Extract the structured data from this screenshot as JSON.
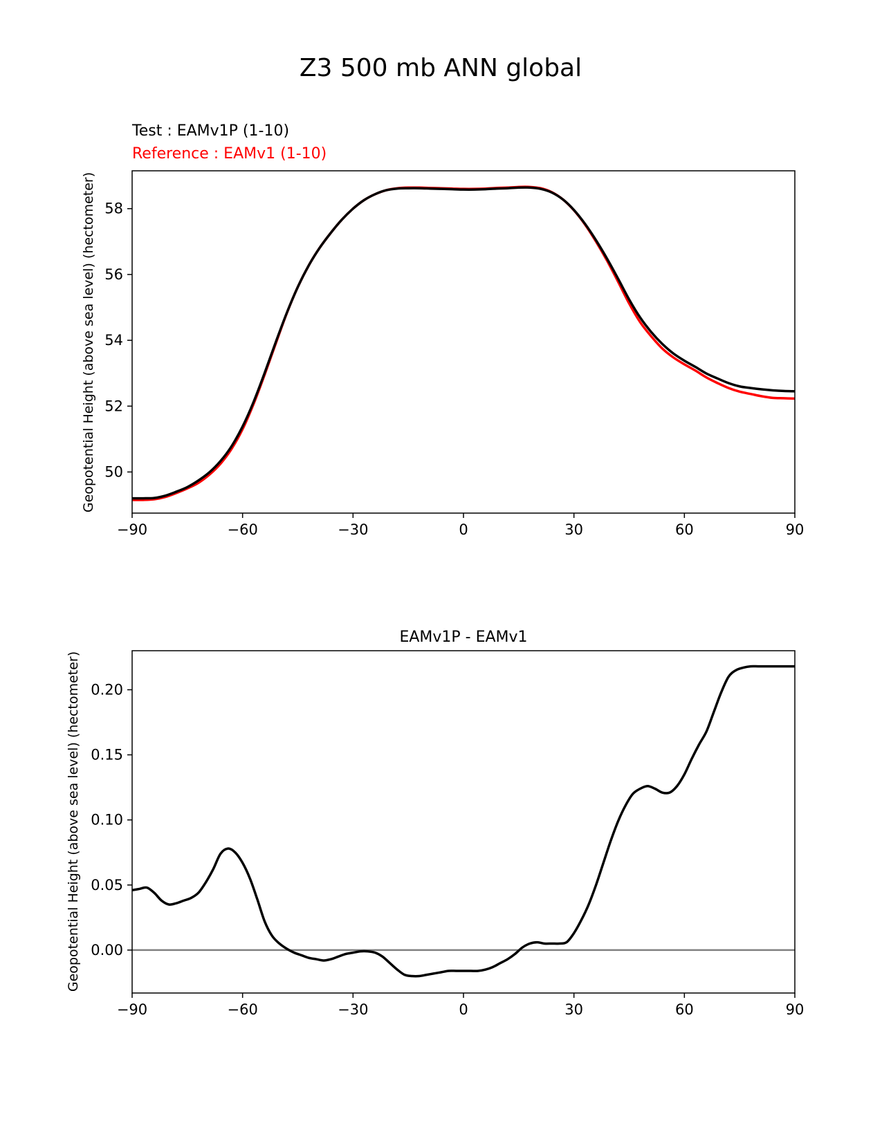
{
  "figure": {
    "title": "Z3 500 mb ANN global"
  },
  "chart_data": [
    {
      "type": "line",
      "test_label": "Test : EAMv1P (1-10)",
      "reference_label": "Reference : EAMv1 (1-10)",
      "xlabel": "",
      "ylabel": "Geopotential Height (above sea level) (hectometer)",
      "xlim": [
        -90,
        90
      ],
      "ylim": [
        48.75,
        59.15
      ],
      "xticks": [
        -90,
        -60,
        -30,
        0,
        30,
        60,
        90
      ],
      "xtick_labels": [
        "−90",
        "−60",
        "−30",
        "0",
        "30",
        "60",
        "90"
      ],
      "yticks": [
        50,
        52,
        54,
        56,
        58
      ],
      "ytick_labels": [
        "50",
        "52",
        "54",
        "56",
        "58"
      ],
      "grid": false,
      "series": [
        {
          "role": "reference",
          "color": "#ff0000",
          "x": [
            -90,
            -87,
            -84,
            -81,
            -78,
            -75,
            -72,
            -69,
            -66,
            -63,
            -60,
            -57,
            -54,
            -51,
            -48,
            -45,
            -42,
            -39,
            -36,
            -33,
            -30,
            -27,
            -24,
            -21,
            -18,
            -15,
            -12,
            -9,
            -6,
            -3,
            0,
            3,
            6,
            9,
            12,
            15,
            18,
            21,
            24,
            27,
            30,
            33,
            36,
            39,
            42,
            45,
            48,
            51,
            54,
            57,
            60,
            63,
            66,
            69,
            72,
            75,
            78,
            81,
            84,
            87,
            90
          ],
          "y": [
            49.15,
            49.15,
            49.17,
            49.24,
            49.36,
            49.5,
            49.67,
            49.92,
            50.25,
            50.7,
            51.3,
            52.07,
            52.96,
            53.9,
            54.82,
            55.62,
            56.28,
            56.82,
            57.27,
            57.67,
            58.0,
            58.26,
            58.44,
            58.56,
            58.62,
            58.64,
            58.64,
            58.63,
            58.62,
            58.61,
            58.6,
            58.6,
            58.61,
            58.63,
            58.64,
            58.66,
            58.66,
            58.62,
            58.5,
            58.28,
            57.95,
            57.52,
            57.0,
            56.42,
            55.78,
            55.12,
            54.55,
            54.12,
            53.75,
            53.48,
            53.27,
            53.08,
            52.87,
            52.7,
            52.55,
            52.44,
            52.37,
            52.3,
            52.25,
            52.24,
            52.23
          ]
        },
        {
          "role": "test",
          "color": "#000000",
          "x": [
            -90,
            -87,
            -84,
            -81,
            -78,
            -75,
            -72,
            -69,
            -66,
            -63,
            -60,
            -57,
            -54,
            -51,
            -48,
            -45,
            -42,
            -39,
            -36,
            -33,
            -30,
            -27,
            -24,
            -21,
            -18,
            -15,
            -12,
            -9,
            -6,
            -3,
            0,
            3,
            6,
            9,
            12,
            15,
            18,
            21,
            24,
            27,
            30,
            33,
            36,
            39,
            42,
            45,
            48,
            51,
            54,
            57,
            60,
            63,
            66,
            69,
            72,
            75,
            78,
            81,
            84,
            87,
            90
          ],
          "y": [
            49.2,
            49.2,
            49.21,
            49.28,
            49.4,
            49.54,
            49.74,
            49.99,
            50.33,
            50.78,
            51.38,
            52.13,
            53.01,
            53.94,
            54.83,
            55.62,
            56.28,
            56.82,
            57.27,
            57.67,
            58.0,
            58.26,
            58.44,
            58.56,
            58.61,
            58.62,
            58.62,
            58.61,
            58.6,
            58.59,
            58.58,
            58.58,
            58.59,
            58.61,
            58.62,
            58.64,
            58.64,
            58.6,
            58.49,
            58.28,
            57.96,
            57.54,
            57.04,
            56.48,
            55.87,
            55.24,
            54.69,
            54.25,
            53.89,
            53.6,
            53.38,
            53.19,
            52.99,
            52.84,
            52.7,
            52.6,
            52.55,
            52.51,
            52.48,
            52.46,
            52.45
          ]
        }
      ]
    },
    {
      "type": "line",
      "title": "EAMv1P - EAMv1",
      "xlabel": "",
      "ylabel": "Geopotential Height (above sea level) (hectometer)",
      "xlim": [
        -90,
        90
      ],
      "ylim": [
        -0.033,
        0.23
      ],
      "xticks": [
        -90,
        -60,
        -30,
        0,
        30,
        60,
        90
      ],
      "xtick_labels": [
        "−90",
        "−60",
        "−30",
        "0",
        "30",
        "60",
        "90"
      ],
      "yticks": [
        0.0,
        0.05,
        0.1,
        0.15,
        0.2
      ],
      "ytick_labels": [
        "0.00",
        "0.05",
        "0.10",
        "0.15",
        "0.20"
      ],
      "grid": false,
      "zero_line_color": "#808080",
      "series": [
        {
          "role": "difference",
          "color": "#000000",
          "x": [
            -90,
            -88,
            -86,
            -84,
            -82,
            -80,
            -78,
            -76,
            -74,
            -72,
            -70,
            -68,
            -66,
            -64,
            -62,
            -60,
            -58,
            -56,
            -54,
            -52,
            -50,
            -48,
            -46,
            -44,
            -42,
            -40,
            -38,
            -36,
            -34,
            -32,
            -30,
            -28,
            -26,
            -24,
            -22,
            -20,
            -18,
            -16,
            -14,
            -12,
            -10,
            -8,
            -6,
            -4,
            -2,
            0,
            2,
            4,
            6,
            8,
            10,
            12,
            14,
            16,
            18,
            20,
            22,
            24,
            26,
            28,
            30,
            32,
            34,
            36,
            38,
            40,
            42,
            44,
            46,
            48,
            50,
            52,
            54,
            56,
            58,
            60,
            62,
            64,
            66,
            68,
            70,
            72,
            74,
            76,
            78,
            80,
            82,
            84,
            86,
            88,
            90
          ],
          "y": [
            0.046,
            0.047,
            0.048,
            0.044,
            0.038,
            0.035,
            0.036,
            0.038,
            0.04,
            0.044,
            0.052,
            0.062,
            0.074,
            0.078,
            0.075,
            0.067,
            0.055,
            0.039,
            0.022,
            0.011,
            0.005,
            0.001,
            -0.002,
            -0.004,
            -0.006,
            -0.007,
            -0.008,
            -0.007,
            -0.005,
            -0.003,
            -0.002,
            -0.001,
            -0.001,
            -0.002,
            -0.005,
            -0.01,
            -0.015,
            -0.019,
            -0.02,
            -0.02,
            -0.019,
            -0.018,
            -0.017,
            -0.016,
            -0.016,
            -0.016,
            -0.016,
            -0.016,
            -0.015,
            -0.013,
            -0.01,
            -0.007,
            -0.003,
            0.002,
            0.005,
            0.006,
            0.005,
            0.005,
            0.005,
            0.006,
            0.013,
            0.023,
            0.035,
            0.05,
            0.067,
            0.084,
            0.099,
            0.111,
            0.12,
            0.124,
            0.126,
            0.124,
            0.121,
            0.121,
            0.126,
            0.135,
            0.147,
            0.158,
            0.168,
            0.183,
            0.198,
            0.21,
            0.215,
            0.217,
            0.218,
            0.218,
            0.218,
            0.218,
            0.218,
            0.218,
            0.218
          ]
        }
      ]
    }
  ]
}
